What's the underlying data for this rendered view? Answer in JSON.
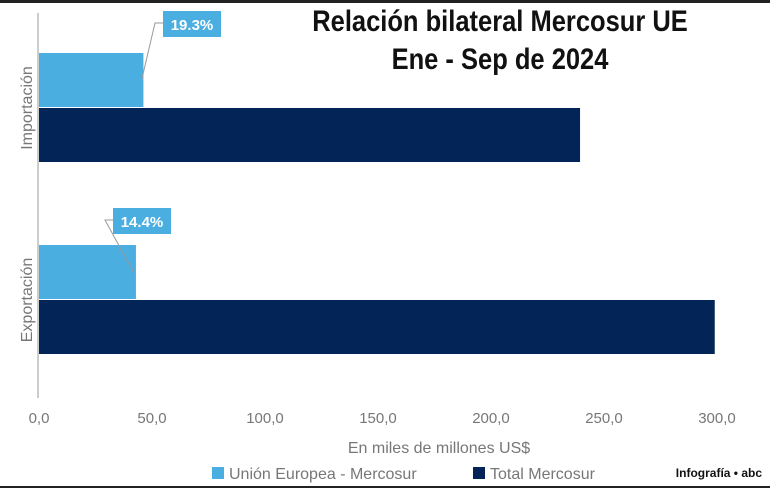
{
  "chart_data": {
    "type": "bar",
    "orientation": "horizontal",
    "title": "Relación bilateral Mercosur UE",
    "subtitle": "Ene - Sep de 2024",
    "xlabel": "En miles de millones US$",
    "xlim": [
      0,
      300
    ],
    "xticks": [
      "0,0",
      "50,0",
      "100,0",
      "150,0",
      "200,0",
      "250,0",
      "300,0"
    ],
    "categories": [
      "Importación",
      "Exportación"
    ],
    "series": [
      {
        "name": "Unión Europea - Mercosur",
        "color": "#4aaee0",
        "values": [
          46.2,
          42.9
        ]
      },
      {
        "name": "Total Mercosur",
        "color": "#022457",
        "values": [
          239.4,
          299.0
        ]
      }
    ],
    "annotations": [
      "19.3%",
      "14.4%"
    ],
    "grid": false,
    "legend": "bottom"
  },
  "credit": "Infografía • abc"
}
